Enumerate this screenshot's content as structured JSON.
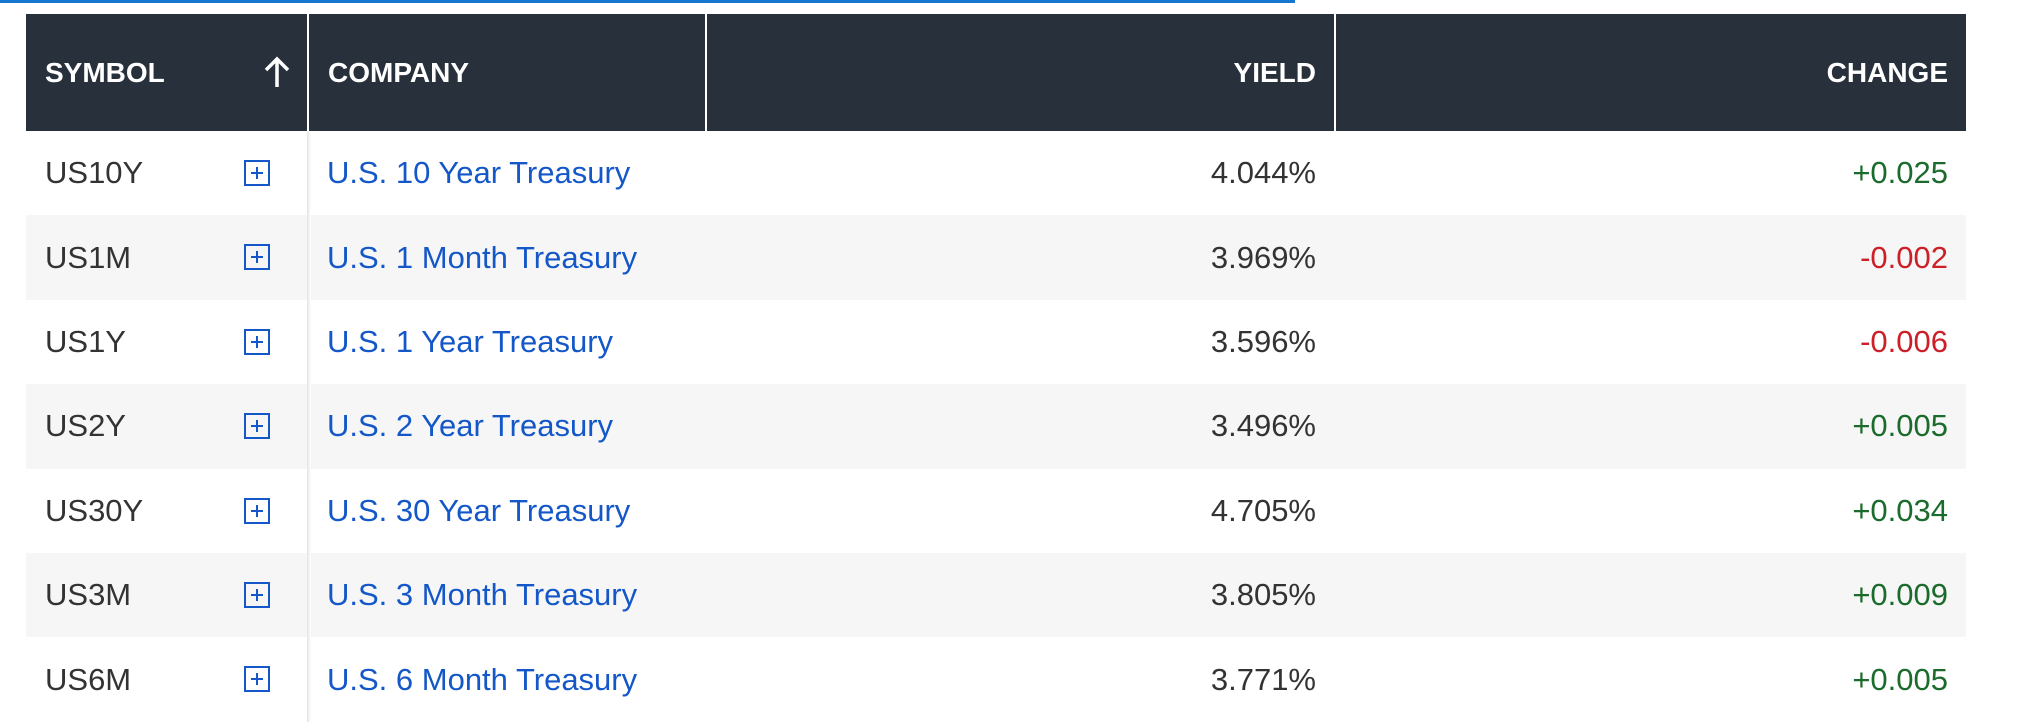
{
  "table": {
    "header": [
      "SYMBOL",
      "COMPANY",
      "YIELD",
      "CHANGE"
    ],
    "rows": [
      [
        "US10Y",
        "U.S. 10 Year Treasury",
        "4.044%",
        "+0.025"
      ],
      [
        "US1M",
        "U.S. 1 Month Treasury",
        "3.969%",
        "-0.002"
      ],
      [
        "US1Y",
        "U.S. 1 Year Treasury",
        "3.596%",
        "-0.006"
      ],
      [
        "US2Y",
        "U.S. 2 Year Treasury",
        "3.496%",
        "+0.005"
      ],
      [
        "US30Y",
        "U.S. 30 Year Treasury",
        "4.705%",
        "+0.034"
      ],
      [
        "US3M",
        "U.S. 3 Month Treasury",
        "3.805%",
        "+0.009"
      ],
      [
        "US6M",
        "U.S. 6 Month Treasury",
        "3.771%",
        "+0.005"
      ]
    ]
  }
}
